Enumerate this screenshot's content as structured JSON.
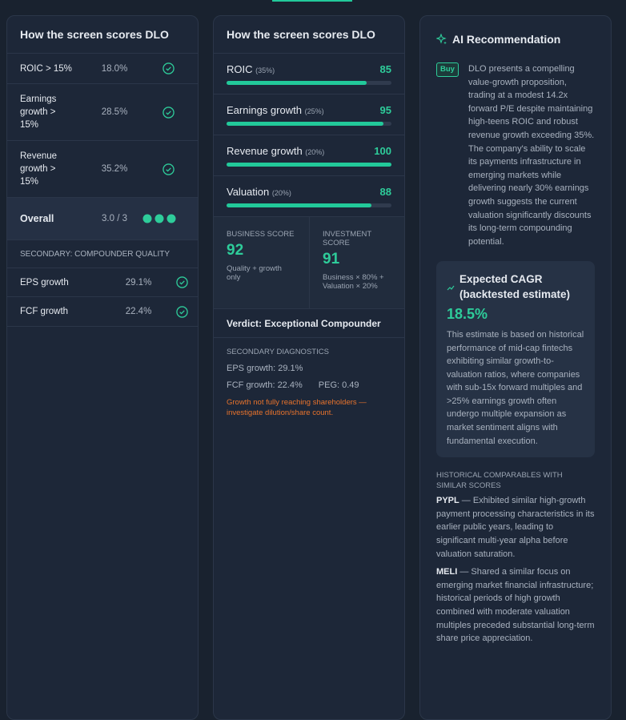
{
  "left": {
    "title": "How the screen scores DLO",
    "rows": [
      {
        "label": "ROIC > 15%",
        "value": "18.0%"
      },
      {
        "label": "Earnings growth > 15%",
        "value": "28.5%"
      },
      {
        "label": "Revenue growth > 15%",
        "value": "35.2%"
      }
    ],
    "overall": {
      "label": "Overall",
      "value": "3.0 / 3"
    },
    "secondary_title": "SECONDARY: COMPOUNDER QUALITY",
    "secondary_rows": [
      {
        "label": "EPS growth",
        "value": "29.1%"
      },
      {
        "label": "FCF growth",
        "value": "22.4%"
      }
    ]
  },
  "middle": {
    "title": "How the screen scores DLO",
    "scores": [
      {
        "label": "ROIC",
        "weight": "(35%)",
        "score": 85
      },
      {
        "label": "Earnings growth",
        "weight": "(25%)",
        "score": 95
      },
      {
        "label": "Revenue growth",
        "weight": "(20%)",
        "score": 100
      },
      {
        "label": "Valuation",
        "weight": "(20%)",
        "score": 88
      }
    ],
    "business": {
      "label": "BUSINESS SCORE",
      "value": 92,
      "note": "Quality + growth only"
    },
    "investment": {
      "label": "INVESTMENT SCORE",
      "value": 91,
      "note": "Business × 80% + Valuation × 20%"
    },
    "verdict": "Verdict: Exceptional Compounder",
    "diagnostics": {
      "title": "SECONDARY DIAGNOSTICS",
      "eps": "EPS growth: 29.1%",
      "fcf": "FCF growth: 22.4%",
      "peg": "PEG: 0.49",
      "warning": "Growth not fully reaching shareholders — investigate dilution/share count."
    }
  },
  "right": {
    "title": "AI Recommendation",
    "badge": "Buy",
    "summary": "DLO presents a compelling value-growth proposition, trading at a modest 14.2x forward P/E despite maintaining high-teens ROIC and robust revenue growth exceeding 35%. The company's ability to scale its payments infrastructure in emerging markets while delivering nearly 30% earnings growth suggests the current valuation significantly discounts its long-term compounding potential.",
    "cagr": {
      "title": "Expected CAGR (backtested estimate)",
      "value": "18.5%",
      "text": "This estimate is based on historical performance of mid-cap fintechs exhibiting similar growth-to-valuation ratios, where companies with sub-15x forward multiples and >25% earnings growth often undergo multiple expansion as market sentiment aligns with fundamental execution."
    },
    "comparables_title": "HISTORICAL COMPARABLES WITH SIMILAR SCORES",
    "comparables": [
      {
        "ticker": "PYPL",
        "text": "— Exhibited similar high-growth payment processing characteristics in its earlier public years, leading to significant multi-year alpha before valuation saturation."
      },
      {
        "ticker": "MELI",
        "text": "— Shared a similar focus on emerging market financial infrastructure; historical periods of high growth combined with moderate valuation multiples preceded substantial long-term share price appreciation."
      }
    ]
  }
}
